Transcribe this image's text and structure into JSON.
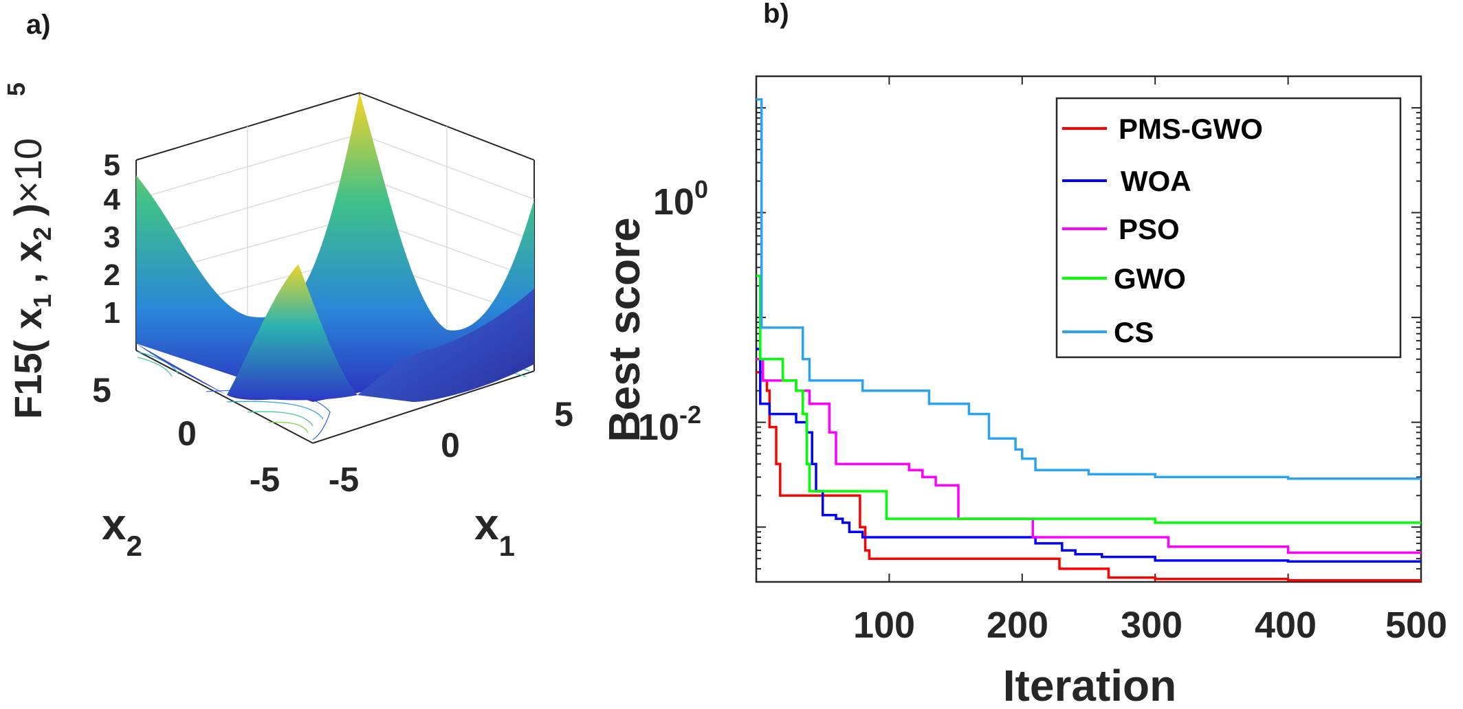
{
  "panel_a": {
    "label": "a)",
    "zlabel": "F15( x",
    "zlabel_sub1": "1",
    "zlabel_mid": " , x",
    "zlabel_sub2": "2",
    "zlabel_end": " )",
    "zscale": "×10",
    "zscale_exp": "5",
    "xlabel": "x",
    "xlabel_sub": "1",
    "ylabel": "x",
    "ylabel_sub": "2",
    "z_ticks": [
      "1",
      "2",
      "3",
      "4",
      "5"
    ],
    "x1_ticks": [
      "-5",
      "0",
      "5"
    ],
    "x2_ticks": [
      "-5",
      "0",
      "5"
    ]
  },
  "chart_data": {
    "type": "line",
    "title": "b)",
    "xlabel": "Iteration",
    "ylabel": "Best score",
    "yscale": "log",
    "xlim": [
      0,
      500
    ],
    "ylim": [
      0.0003,
      20
    ],
    "x_ticks": [
      "100",
      "200",
      "300",
      "400",
      "500"
    ],
    "y_ticks": [
      {
        "value": 1,
        "base": "10",
        "exp": "0"
      },
      {
        "value": 0.01,
        "base": "10",
        "exp": "-2"
      }
    ],
    "legend_position": "top-right",
    "series": [
      {
        "name": "PMS-GWO",
        "color": "#ff0000",
        "steps": [
          [
            0,
            0.03
          ],
          [
            5,
            0.025
          ],
          [
            8,
            0.02
          ],
          [
            10,
            0.009
          ],
          [
            15,
            0.004
          ],
          [
            18,
            0.002
          ],
          [
            50,
            0.002
          ],
          [
            75,
            0.002
          ],
          [
            78,
            0.001
          ],
          [
            82,
            0.0006
          ],
          [
            85,
            0.0005
          ],
          [
            200,
            0.0005
          ],
          [
            225,
            0.0005
          ],
          [
            228,
            0.0004
          ],
          [
            260,
            0.0004
          ],
          [
            265,
            0.00033
          ],
          [
            300,
            0.00032
          ],
          [
            400,
            0.00031
          ],
          [
            500,
            0.0003
          ]
        ]
      },
      {
        "name": "WOA",
        "color": "#0000ff",
        "steps": [
          [
            0,
            0.05
          ],
          [
            3,
            0.015
          ],
          [
            10,
            0.012
          ],
          [
            30,
            0.01
          ],
          [
            38,
            0.008
          ],
          [
            42,
            0.004
          ],
          [
            45,
            0.0022
          ],
          [
            50,
            0.0013
          ],
          [
            60,
            0.0012
          ],
          [
            65,
            0.0011
          ],
          [
            70,
            0.0009
          ],
          [
            80,
            0.0008
          ],
          [
            200,
            0.0008
          ],
          [
            210,
            0.0007
          ],
          [
            230,
            0.0006
          ],
          [
            240,
            0.00055
          ],
          [
            260,
            0.00052
          ],
          [
            300,
            0.00048
          ],
          [
            400,
            0.00047
          ],
          [
            500,
            0.00047
          ]
        ]
      },
      {
        "name": "PSO",
        "color": "#ff00ff",
        "steps": [
          [
            0,
            0.04
          ],
          [
            5,
            0.025
          ],
          [
            10,
            0.025
          ],
          [
            30,
            0.02
          ],
          [
            40,
            0.015
          ],
          [
            50,
            0.015
          ],
          [
            55,
            0.008
          ],
          [
            60,
            0.004
          ],
          [
            70,
            0.004
          ],
          [
            100,
            0.004
          ],
          [
            115,
            0.0035
          ],
          [
            125,
            0.003
          ],
          [
            135,
            0.0025
          ],
          [
            150,
            0.0025
          ],
          [
            152,
            0.0012
          ],
          [
            200,
            0.0012
          ],
          [
            208,
            0.0008
          ],
          [
            215,
            0.0008
          ],
          [
            300,
            0.0008
          ],
          [
            310,
            0.00065
          ],
          [
            400,
            0.00057
          ],
          [
            500,
            0.00057
          ]
        ]
      },
      {
        "name": "GWO",
        "color": "#00ff00",
        "steps": [
          [
            0,
            0.25
          ],
          [
            3,
            0.04
          ],
          [
            10,
            0.04
          ],
          [
            20,
            0.025
          ],
          [
            30,
            0.02
          ],
          [
            35,
            0.012
          ],
          [
            38,
            0.004
          ],
          [
            40,
            0.0022
          ],
          [
            85,
            0.0022
          ],
          [
            95,
            0.0022
          ],
          [
            98,
            0.0012
          ],
          [
            200,
            0.0012
          ],
          [
            300,
            0.0011
          ],
          [
            400,
            0.0011
          ],
          [
            500,
            0.0011
          ]
        ]
      },
      {
        "name": "CS",
        "color": "#2ba3f0",
        "steps": [
          [
            0,
            12
          ],
          [
            3,
            12
          ],
          [
            4,
            0.08
          ],
          [
            30,
            0.08
          ],
          [
            35,
            0.04
          ],
          [
            40,
            0.025
          ],
          [
            75,
            0.025
          ],
          [
            80,
            0.02
          ],
          [
            125,
            0.02
          ],
          [
            130,
            0.015
          ],
          [
            150,
            0.015
          ],
          [
            160,
            0.012
          ],
          [
            175,
            0.007
          ],
          [
            195,
            0.0055
          ],
          [
            200,
            0.0045
          ],
          [
            210,
            0.0035
          ],
          [
            250,
            0.0032
          ],
          [
            300,
            0.003
          ],
          [
            400,
            0.0029
          ],
          [
            500,
            0.0028
          ]
        ]
      }
    ]
  },
  "colors": {
    "axis": "#262626",
    "grid": "#d9d9d9",
    "surface_low": "#2b31c9",
    "surface_mid": "#2fb7a5",
    "surface_high": "#f9d326"
  }
}
